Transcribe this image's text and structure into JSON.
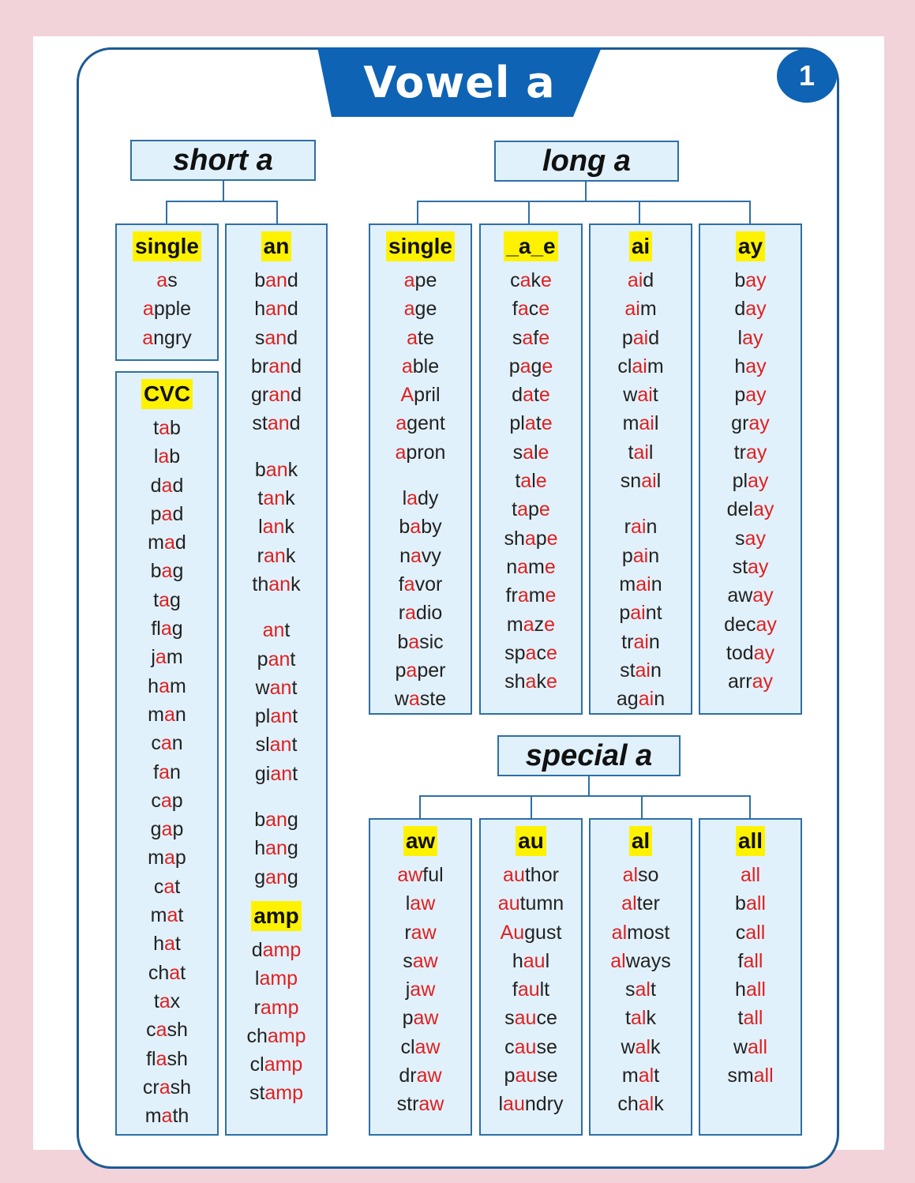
{
  "title": "Vowel a",
  "page_number": "1",
  "headers": {
    "short": "short a",
    "long": "long a",
    "special": "special a"
  },
  "columns": [
    {
      "label": "single",
      "words": [
        {
          "pre": "",
          "hl": "a",
          "post": "s"
        },
        {
          "pre": "",
          "hl": "a",
          "post": "pple"
        },
        {
          "pre": "",
          "hl": "a",
          "post": "ngry"
        }
      ]
    },
    {
      "label": "CVC",
      "words": [
        {
          "pre": "t",
          "hl": "a",
          "post": "b"
        },
        {
          "pre": "l",
          "hl": "a",
          "post": "b"
        },
        {
          "pre": "d",
          "hl": "a",
          "post": "d"
        },
        {
          "pre": "p",
          "hl": "a",
          "post": "d"
        },
        {
          "pre": "m",
          "hl": "a",
          "post": "d"
        },
        {
          "pre": "b",
          "hl": "a",
          "post": "g"
        },
        {
          "pre": "t",
          "hl": "a",
          "post": "g"
        },
        {
          "pre": "fl",
          "hl": "a",
          "post": "g"
        },
        {
          "pre": "j",
          "hl": "a",
          "post": "m"
        },
        {
          "pre": "h",
          "hl": "a",
          "post": "m"
        },
        {
          "pre": "m",
          "hl": "a",
          "post": "n"
        },
        {
          "pre": "c",
          "hl": "a",
          "post": "n"
        },
        {
          "pre": "f",
          "hl": "a",
          "post": "n"
        },
        {
          "pre": "c",
          "hl": "a",
          "post": "p"
        },
        {
          "pre": "g",
          "hl": "a",
          "post": "p"
        },
        {
          "pre": "m",
          "hl": "a",
          "post": "p"
        },
        {
          "pre": "c",
          "hl": "a",
          "post": "t"
        },
        {
          "pre": "m",
          "hl": "a",
          "post": "t"
        },
        {
          "pre": "h",
          "hl": "a",
          "post": "t"
        },
        {
          "pre": "ch",
          "hl": "a",
          "post": "t"
        },
        {
          "pre": "t",
          "hl": "a",
          "post": "x"
        },
        {
          "pre": "c",
          "hl": "a",
          "post": "sh"
        },
        {
          "pre": "fl",
          "hl": "a",
          "post": "sh"
        },
        {
          "pre": "cr",
          "hl": "a",
          "post": "sh"
        },
        {
          "pre": "m",
          "hl": "a",
          "post": "th"
        }
      ]
    },
    {
      "label": "an",
      "words": [
        {
          "pre": "b",
          "hl": "an",
          "post": "d"
        },
        {
          "pre": "h",
          "hl": "an",
          "post": "d"
        },
        {
          "pre": "s",
          "hl": "an",
          "post": "d"
        },
        {
          "pre": "br",
          "hl": "an",
          "post": "d"
        },
        {
          "pre": "gr",
          "hl": "an",
          "post": "d"
        },
        {
          "pre": "st",
          "hl": "an",
          "post": "d"
        },
        {
          "gap": true
        },
        {
          "pre": "b",
          "hl": "an",
          "post": "k"
        },
        {
          "pre": "t",
          "hl": "an",
          "post": "k"
        },
        {
          "pre": "l",
          "hl": "an",
          "post": "k"
        },
        {
          "pre": "r",
          "hl": "an",
          "post": "k"
        },
        {
          "pre": "th",
          "hl": "an",
          "post": "k"
        },
        {
          "gap": true
        },
        {
          "pre": "",
          "hl": "an",
          "post": "t"
        },
        {
          "pre": "p",
          "hl": "an",
          "post": "t"
        },
        {
          "pre": "w",
          "hl": "an",
          "post": "t"
        },
        {
          "pre": "pl",
          "hl": "an",
          "post": "t"
        },
        {
          "pre": "sl",
          "hl": "an",
          "post": "t"
        },
        {
          "pre": "gi",
          "hl": "an",
          "post": "t"
        },
        {
          "gap": true
        },
        {
          "pre": "b",
          "hl": "an",
          "post": "g"
        },
        {
          "pre": "h",
          "hl": "an",
          "post": "g"
        },
        {
          "pre": "g",
          "hl": "an",
          "post": "g"
        }
      ]
    },
    {
      "label": "amp",
      "words": [
        {
          "pre": "d",
          "hl": "amp",
          "post": ""
        },
        {
          "pre": "l",
          "hl": "amp",
          "post": ""
        },
        {
          "pre": "r",
          "hl": "amp",
          "post": ""
        },
        {
          "pre": "ch",
          "hl": "amp",
          "post": ""
        },
        {
          "pre": "cl",
          "hl": "amp",
          "post": ""
        },
        {
          "pre": "st",
          "hl": "amp",
          "post": ""
        }
      ]
    },
    {
      "label": "single",
      "words": [
        {
          "pre": "",
          "hl": "a",
          "post": "pe"
        },
        {
          "pre": "",
          "hl": "a",
          "post": "ge"
        },
        {
          "pre": "",
          "hl": "a",
          "post": "te"
        },
        {
          "pre": "",
          "hl": "a",
          "post": "ble"
        },
        {
          "pre": "",
          "hl": "A",
          "post": "pril"
        },
        {
          "pre": "",
          "hl": "a",
          "post": "gent"
        },
        {
          "pre": "",
          "hl": "a",
          "post": "pron"
        },
        {
          "gap": true
        },
        {
          "pre": "l",
          "hl": "a",
          "post": "dy"
        },
        {
          "pre": "b",
          "hl": "a",
          "post": "by"
        },
        {
          "pre": "n",
          "hl": "a",
          "post": "vy"
        },
        {
          "pre": "f",
          "hl": "a",
          "post": "vor"
        },
        {
          "pre": "r",
          "hl": "a",
          "post": "dio"
        },
        {
          "pre": "b",
          "hl": "a",
          "post": "sic"
        },
        {
          "pre": "p",
          "hl": "a",
          "post": "per"
        },
        {
          "pre": "w",
          "hl": "a",
          "post": "ste"
        }
      ]
    },
    {
      "label": "_a_e",
      "words": [
        {
          "pre": "c",
          "hl": "a",
          "post": "k",
          "hl2": "e"
        },
        {
          "pre": "f",
          "hl": "a",
          "post": "c",
          "hl2": "e"
        },
        {
          "pre": "s",
          "hl": "a",
          "post": "f",
          "hl2": "e"
        },
        {
          "pre": "p",
          "hl": "a",
          "post": "g",
          "hl2": "e"
        },
        {
          "pre": "d",
          "hl": "a",
          "post": "t",
          "hl2": "e"
        },
        {
          "pre": "pl",
          "hl": "a",
          "post": "t",
          "hl2": "e"
        },
        {
          "pre": "s",
          "hl": "a",
          "post": "l",
          "hl2": "e"
        },
        {
          "pre": "t",
          "hl": "a",
          "post": "l",
          "hl2": "e"
        },
        {
          "pre": "t",
          "hl": "a",
          "post": "p",
          "hl2": "e"
        },
        {
          "pre": "sh",
          "hl": "a",
          "post": "p",
          "hl2": "e"
        },
        {
          "pre": "n",
          "hl": "a",
          "post": "m",
          "hl2": "e"
        },
        {
          "pre": "fr",
          "hl": "a",
          "post": "m",
          "hl2": "e"
        },
        {
          "pre": "m",
          "hl": "a",
          "post": "z",
          "hl2": "e"
        },
        {
          "pre": "sp",
          "hl": "a",
          "post": "c",
          "hl2": "e"
        },
        {
          "pre": "sh",
          "hl": "a",
          "post": "k",
          "hl2": "e"
        }
      ]
    },
    {
      "label": "ai",
      "words": [
        {
          "pre": "",
          "hl": "ai",
          "post": "d"
        },
        {
          "pre": "",
          "hl": "ai",
          "post": "m"
        },
        {
          "pre": "p",
          "hl": "ai",
          "post": "d"
        },
        {
          "pre": "cl",
          "hl": "ai",
          "post": "m"
        },
        {
          "pre": "w",
          "hl": "ai",
          "post": "t"
        },
        {
          "pre": "m",
          "hl": "ai",
          "post": "l"
        },
        {
          "pre": "t",
          "hl": "ai",
          "post": "l"
        },
        {
          "pre": "sn",
          "hl": "ai",
          "post": "l"
        },
        {
          "gap": true
        },
        {
          "pre": "r",
          "hl": "ai",
          "post": "n"
        },
        {
          "pre": "p",
          "hl": "ai",
          "post": "n"
        },
        {
          "pre": "m",
          "hl": "ai",
          "post": "n"
        },
        {
          "pre": "p",
          "hl": "ai",
          "post": "nt"
        },
        {
          "pre": "tr",
          "hl": "ai",
          "post": "n"
        },
        {
          "pre": "st",
          "hl": "ai",
          "post": "n"
        },
        {
          "pre": "ag",
          "hl": "ai",
          "post": "n"
        }
      ]
    },
    {
      "label": "ay",
      "words": [
        {
          "pre": "b",
          "hl": "ay",
          "post": ""
        },
        {
          "pre": "d",
          "hl": "ay",
          "post": ""
        },
        {
          "pre": "l",
          "hl": "ay",
          "post": ""
        },
        {
          "pre": "h",
          "hl": "ay",
          "post": ""
        },
        {
          "pre": "p",
          "hl": "ay",
          "post": ""
        },
        {
          "pre": "gr",
          "hl": "ay",
          "post": ""
        },
        {
          "pre": "tr",
          "hl": "ay",
          "post": ""
        },
        {
          "pre": "pl",
          "hl": "ay",
          "post": ""
        },
        {
          "pre": "del",
          "hl": "ay",
          "post": ""
        },
        {
          "pre": "s",
          "hl": "ay",
          "post": ""
        },
        {
          "pre": "st",
          "hl": "ay",
          "post": ""
        },
        {
          "pre": "aw",
          "hl": "ay",
          "post": ""
        },
        {
          "pre": "dec",
          "hl": "ay",
          "post": ""
        },
        {
          "pre": "tod",
          "hl": "ay",
          "post": ""
        },
        {
          "pre": "arr",
          "hl": "ay",
          "post": ""
        }
      ]
    },
    {
      "label": "aw",
      "words": [
        {
          "pre": "",
          "hl": "aw",
          "post": "ful"
        },
        {
          "pre": "l",
          "hl": "aw",
          "post": ""
        },
        {
          "pre": "r",
          "hl": "aw",
          "post": ""
        },
        {
          "pre": "s",
          "hl": "aw",
          "post": ""
        },
        {
          "pre": "j",
          "hl": "aw",
          "post": ""
        },
        {
          "pre": "p",
          "hl": "aw",
          "post": ""
        },
        {
          "pre": "cl",
          "hl": "aw",
          "post": ""
        },
        {
          "pre": "dr",
          "hl": "aw",
          "post": ""
        },
        {
          "pre": "str",
          "hl": "aw",
          "post": ""
        }
      ]
    },
    {
      "label": "au",
      "words": [
        {
          "pre": "",
          "hl": "au",
          "post": "thor"
        },
        {
          "pre": "",
          "hl": "au",
          "post": "tumn"
        },
        {
          "pre": "",
          "hl": "Au",
          "post": "gust"
        },
        {
          "pre": "h",
          "hl": "au",
          "post": "l"
        },
        {
          "pre": "f",
          "hl": "au",
          "post": "lt"
        },
        {
          "pre": "s",
          "hl": "au",
          "post": "ce"
        },
        {
          "pre": "c",
          "hl": "au",
          "post": "se"
        },
        {
          "pre": "p",
          "hl": "au",
          "post": "se"
        },
        {
          "pre": "l",
          "hl": "au",
          "post": "ndry"
        }
      ]
    },
    {
      "label": "al",
      "words": [
        {
          "pre": "",
          "hl": "al",
          "post": "so"
        },
        {
          "pre": "",
          "hl": "al",
          "post": "ter"
        },
        {
          "pre": "",
          "hl": "al",
          "post": "most"
        },
        {
          "pre": "",
          "hl": "al",
          "post": "ways"
        },
        {
          "pre": "s",
          "hl": "al",
          "post": "t"
        },
        {
          "pre": "t",
          "hl": "al",
          "post": "k"
        },
        {
          "pre": "w",
          "hl": "al",
          "post": "k"
        },
        {
          "pre": "m",
          "hl": "al",
          "post": "t"
        },
        {
          "pre": "ch",
          "hl": "al",
          "post": "k"
        }
      ]
    },
    {
      "label": "all",
      "words": [
        {
          "pre": "",
          "hl": "all",
          "post": ""
        },
        {
          "pre": "b",
          "hl": "all",
          "post": ""
        },
        {
          "pre": "c",
          "hl": "all",
          "post": ""
        },
        {
          "pre": "f",
          "hl": "all",
          "post": ""
        },
        {
          "pre": "h",
          "hl": "all",
          "post": ""
        },
        {
          "pre": "t",
          "hl": "all",
          "post": ""
        },
        {
          "pre": "w",
          "hl": "all",
          "post": ""
        },
        {
          "pre": "sm",
          "hl": "all",
          "post": ""
        }
      ]
    }
  ],
  "colors": {
    "frame": "#1c5b94",
    "banner": "#0e63b4",
    "box_fill": "#e1f1fb",
    "highlight": "#e02020",
    "label_bg": "#fff200"
  }
}
